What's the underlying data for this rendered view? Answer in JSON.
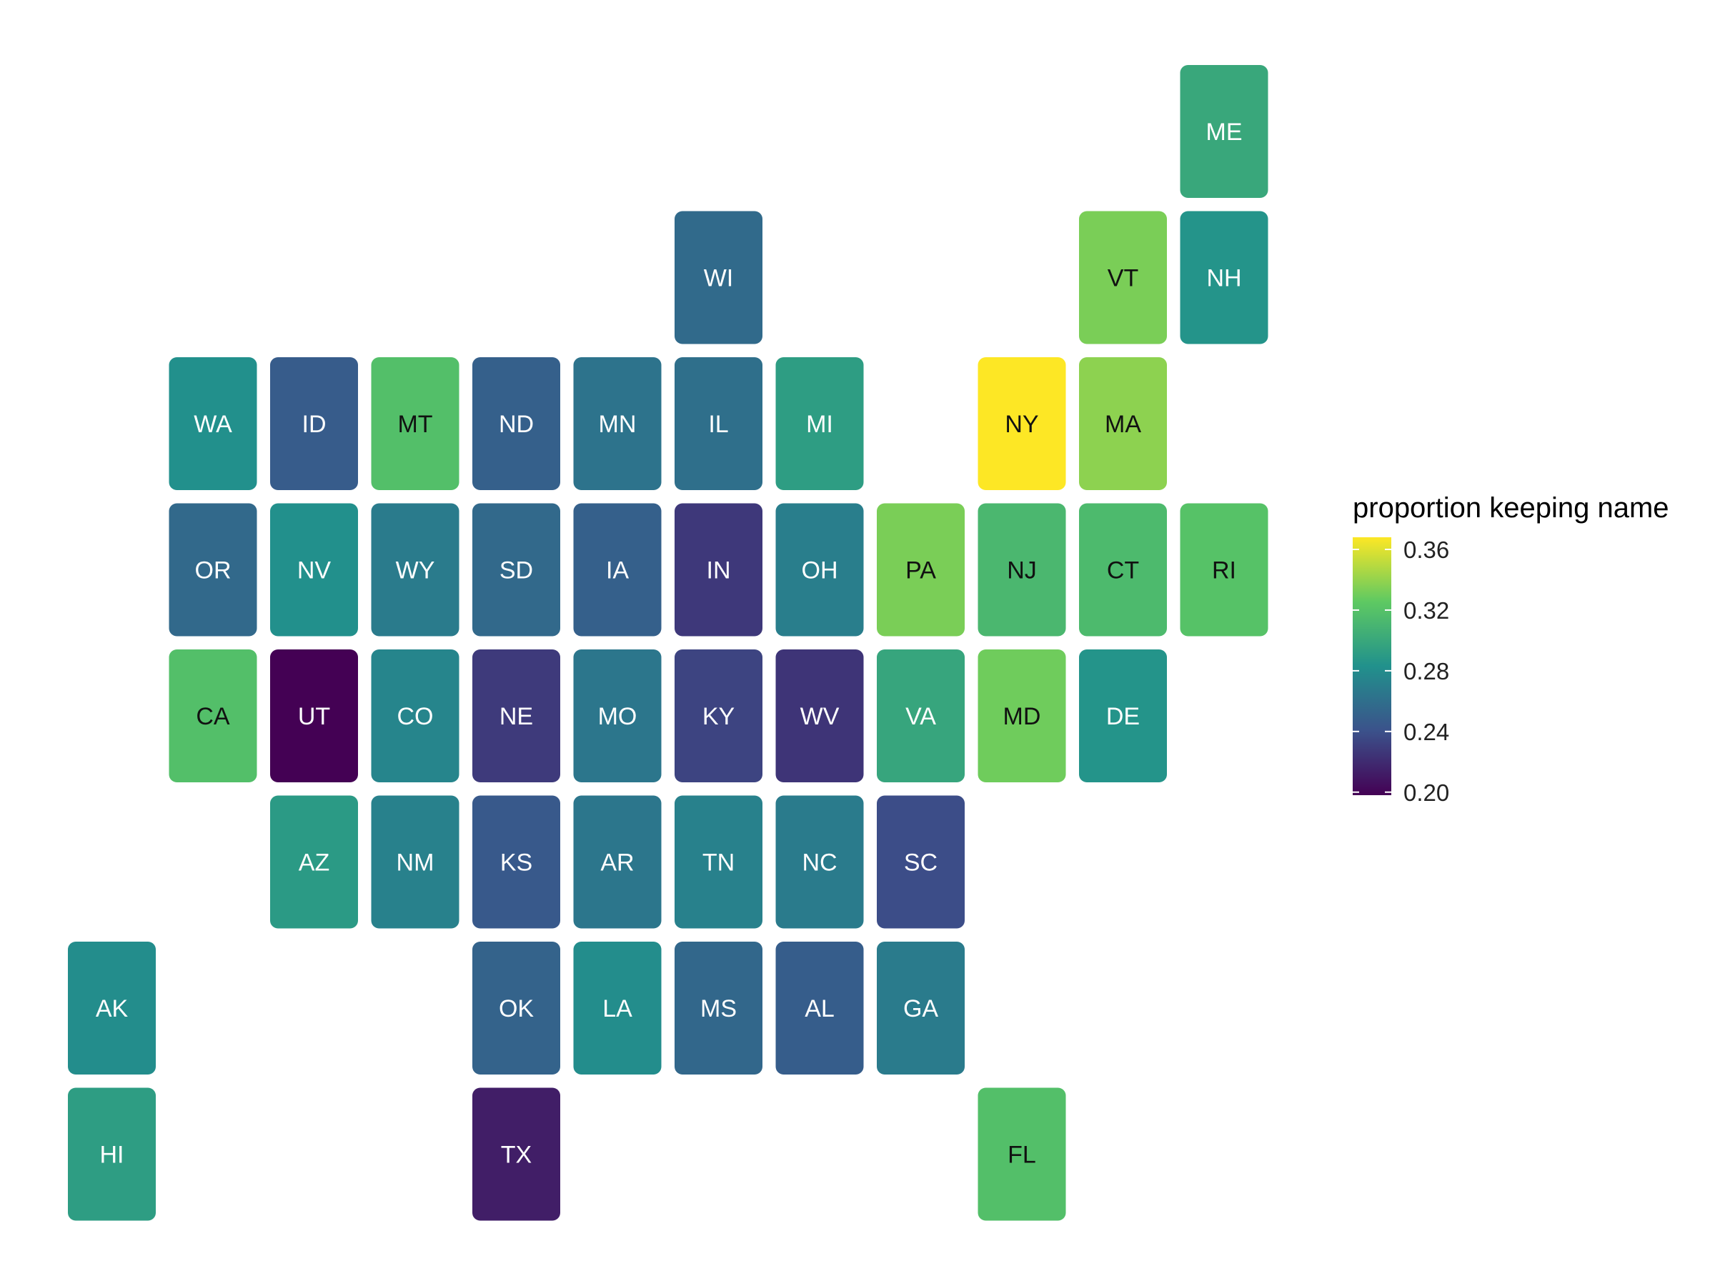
{
  "chart_data": {
    "type": "heatmap",
    "subtype": "tile-grid-map",
    "legend": {
      "title": "proportion keeping name",
      "placement": "right",
      "range": [
        0.198,
        0.368
      ],
      "ticks": [
        0.36,
        0.32,
        0.28,
        0.24,
        0.2
      ],
      "tick_labels": [
        "0.36",
        "0.32",
        "0.28",
        "0.24",
        "0.20"
      ],
      "palette": [
        "#440154",
        "#3b528b",
        "#21918c",
        "#5ec962",
        "#fde725"
      ]
    },
    "grid": {
      "columns": 12,
      "rows": 8
    },
    "tiles": [
      {
        "state": "ME",
        "col": 12,
        "row": 1,
        "value": 0.3
      },
      {
        "state": "WI",
        "col": 7,
        "row": 2,
        "value": 0.257
      },
      {
        "state": "VT",
        "col": 11,
        "row": 2,
        "value": 0.333
      },
      {
        "state": "NH",
        "col": 12,
        "row": 2,
        "value": 0.285
      },
      {
        "state": "WA",
        "col": 2,
        "row": 3,
        "value": 0.282
      },
      {
        "state": "ID",
        "col": 3,
        "row": 3,
        "value": 0.247
      },
      {
        "state": "MT",
        "col": 4,
        "row": 3,
        "value": 0.318
      },
      {
        "state": "ND",
        "col": 5,
        "row": 3,
        "value": 0.25
      },
      {
        "state": "MN",
        "col": 6,
        "row": 3,
        "value": 0.263
      },
      {
        "state": "IL",
        "col": 7,
        "row": 3,
        "value": 0.26
      },
      {
        "state": "MI",
        "col": 8,
        "row": 3,
        "value": 0.292
      },
      {
        "state": "NY",
        "col": 10,
        "row": 3,
        "value": 0.368
      },
      {
        "state": "MA",
        "col": 11,
        "row": 3,
        "value": 0.338
      },
      {
        "state": "OR",
        "col": 2,
        "row": 4,
        "value": 0.256
      },
      {
        "state": "NV",
        "col": 3,
        "row": 4,
        "value": 0.282
      },
      {
        "state": "WY",
        "col": 4,
        "row": 4,
        "value": 0.268
      },
      {
        "state": "SD",
        "col": 5,
        "row": 4,
        "value": 0.256
      },
      {
        "state": "IA",
        "col": 6,
        "row": 4,
        "value": 0.25
      },
      {
        "state": "IN",
        "col": 7,
        "row": 4,
        "value": 0.227
      },
      {
        "state": "OH",
        "col": 8,
        "row": 4,
        "value": 0.27
      },
      {
        "state": "PA",
        "col": 9,
        "row": 4,
        "value": 0.333
      },
      {
        "state": "NJ",
        "col": 10,
        "row": 4,
        "value": 0.312
      },
      {
        "state": "CT",
        "col": 11,
        "row": 4,
        "value": 0.314
      },
      {
        "state": "RI",
        "col": 12,
        "row": 4,
        "value": 0.32
      },
      {
        "state": "CA",
        "col": 2,
        "row": 5,
        "value": 0.318
      },
      {
        "state": "UT",
        "col": 3,
        "row": 5,
        "value": 0.198
      },
      {
        "state": "CO",
        "col": 4,
        "row": 5,
        "value": 0.275
      },
      {
        "state": "NE",
        "col": 5,
        "row": 5,
        "value": 0.228
      },
      {
        "state": "MO",
        "col": 6,
        "row": 5,
        "value": 0.265
      },
      {
        "state": "KY",
        "col": 7,
        "row": 5,
        "value": 0.233
      },
      {
        "state": "WV",
        "col": 8,
        "row": 5,
        "value": 0.225
      },
      {
        "state": "VA",
        "col": 9,
        "row": 5,
        "value": 0.298
      },
      {
        "state": "MD",
        "col": 10,
        "row": 5,
        "value": 0.33
      },
      {
        "state": "DE",
        "col": 11,
        "row": 5,
        "value": 0.285
      },
      {
        "state": "AZ",
        "col": 3,
        "row": 6,
        "value": 0.29
      },
      {
        "state": "NM",
        "col": 4,
        "row": 6,
        "value": 0.272
      },
      {
        "state": "KS",
        "col": 5,
        "row": 6,
        "value": 0.245
      },
      {
        "state": "AR",
        "col": 6,
        "row": 6,
        "value": 0.265
      },
      {
        "state": "TN",
        "col": 7,
        "row": 6,
        "value": 0.272
      },
      {
        "state": "NC",
        "col": 8,
        "row": 6,
        "value": 0.268
      },
      {
        "state": "SC",
        "col": 9,
        "row": 6,
        "value": 0.238
      },
      {
        "state": "AK",
        "col": 1,
        "row": 7,
        "value": 0.28
      },
      {
        "state": "OK",
        "col": 5,
        "row": 7,
        "value": 0.252
      },
      {
        "state": "LA",
        "col": 6,
        "row": 7,
        "value": 0.28
      },
      {
        "state": "MS",
        "col": 7,
        "row": 7,
        "value": 0.255
      },
      {
        "state": "AL",
        "col": 8,
        "row": 7,
        "value": 0.248
      },
      {
        "state": "GA",
        "col": 9,
        "row": 7,
        "value": 0.268
      },
      {
        "state": "HI",
        "col": 1,
        "row": 8,
        "value": 0.292
      },
      {
        "state": "TX",
        "col": 5,
        "row": 8,
        "value": 0.213
      },
      {
        "state": "FL",
        "col": 10,
        "row": 8,
        "value": 0.318
      }
    ]
  }
}
